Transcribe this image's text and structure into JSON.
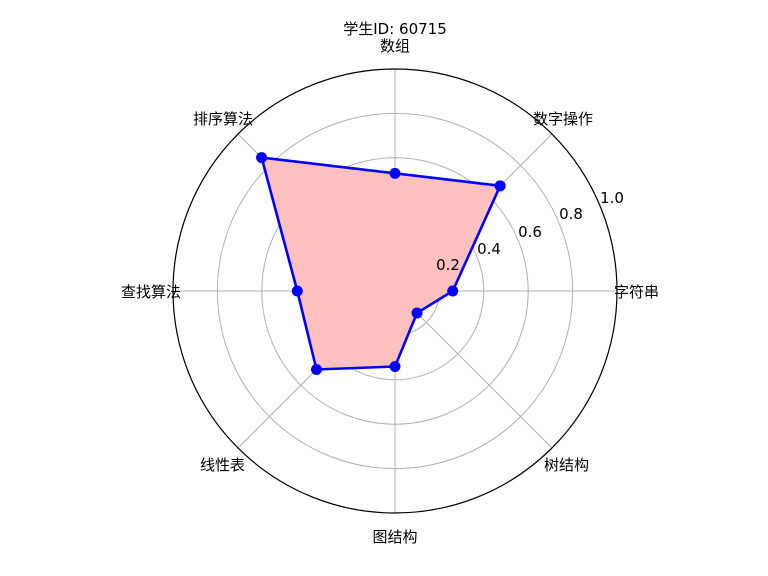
{
  "chart_data": {
    "type": "radar",
    "title": "学生ID: 60715",
    "categories": [
      "字符串",
      "数字操作",
      "数组",
      "排序算法",
      "查找算法",
      "线性表",
      "图结构",
      "树结构"
    ],
    "series": [
      {
        "values": [
          0.26,
          0.67,
          0.53,
          0.85,
          0.44,
          0.5,
          0.34,
          0.14
        ]
      }
    ],
    "radial_ticks": [
      "0.2",
      "0.4",
      "0.6",
      "0.8",
      "1.0"
    ],
    "radial_tick_values": [
      0.2,
      0.4,
      0.6,
      0.8,
      1.0
    ],
    "rlim": [
      0,
      1.0
    ],
    "grid": true,
    "colors": {
      "line": "#0000ff",
      "fill": "#ffc0c0",
      "grid": "#b0b0b0",
      "frame": "#000000"
    }
  }
}
